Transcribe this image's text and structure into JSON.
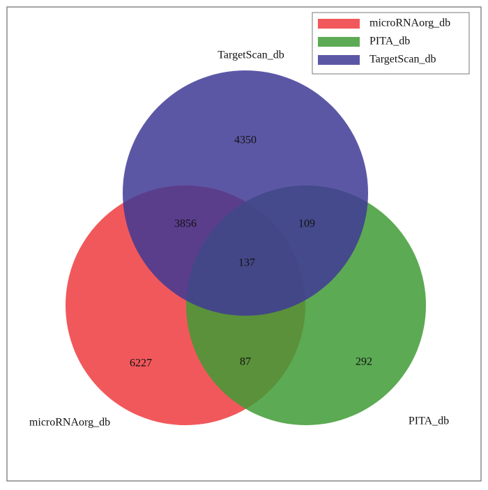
{
  "chart_data": {
    "type": "venn",
    "series": [
      {
        "name": "microRNAorg_db",
        "color": "#ee3b3e"
      },
      {
        "name": "PITA_db",
        "color": "#3f9b35"
      },
      {
        "name": "TargetScan_db",
        "color": "#3f3a95"
      }
    ],
    "values": [
      6227,
      292,
      4350,
      3856,
      87,
      109,
      137
    ],
    "legend": "upper right"
  }
}
